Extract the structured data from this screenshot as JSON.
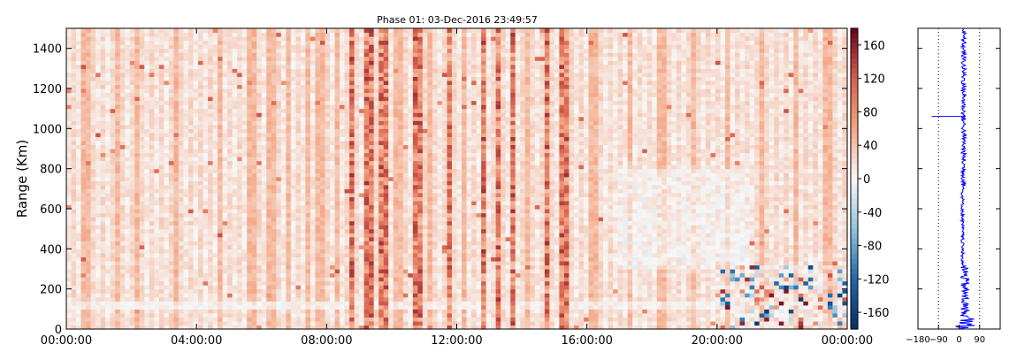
{
  "chart_data": [
    {
      "type": "heatmap",
      "title": "Phase 01: 03-Dec-2016 23:49:57",
      "xlabel": "",
      "ylabel": "Range (Km)",
      "x_ticks": [
        "00:00:00",
        "04:00:00",
        "08:00:00",
        "12:00:00",
        "16:00:00",
        "20:00:00",
        "00:00:00"
      ],
      "y_ticks": [
        0,
        200,
        400,
        600,
        800,
        1000,
        1200,
        1400
      ],
      "xlim_hours": [
        0,
        24
      ],
      "ylim": [
        0,
        1500
      ],
      "value_range": [
        -180,
        180
      ],
      "colormap": "diverging blue-white-red",
      "colors": {
        "low": "#053061",
        "mid": "#f7f7f7",
        "high": "#67001f"
      },
      "strong_columns_hours": [
        8.75,
        9.3,
        9.75,
        10.8,
        11.75,
        12.8,
        13.3,
        13.75,
        14.8,
        15.3
      ],
      "mid_columns_hours": [
        0.6,
        1.6,
        2.2,
        3.4,
        4.7,
        5.7,
        6.3,
        6.8,
        7.4,
        7.8,
        8.3,
        10.2,
        11.2,
        12.2,
        14.2,
        16.2,
        17.3,
        18.3,
        19.3,
        20.3,
        21.4,
        22.4,
        23.4
      ],
      "noise_region": {
        "x_hours": [
          20.0,
          24.0
        ],
        "y_km": [
          0,
          320
        ]
      }
    },
    {
      "type": "colorbar",
      "ticks": [
        160,
        120,
        80,
        40,
        0,
        -40,
        -80,
        -120,
        -160
      ],
      "range": [
        -180,
        180
      ]
    },
    {
      "type": "line",
      "x_ticks": [
        "−180",
        "−90",
        "0",
        "90"
      ],
      "xlim": [
        -180,
        180
      ],
      "ylim": [
        0,
        1500
      ],
      "grid_x": [
        -90,
        90
      ],
      "line_color": "#0000ff",
      "profile_mean": 20,
      "spike": {
        "y_km": 1060,
        "x_value": -120
      }
    }
  ]
}
